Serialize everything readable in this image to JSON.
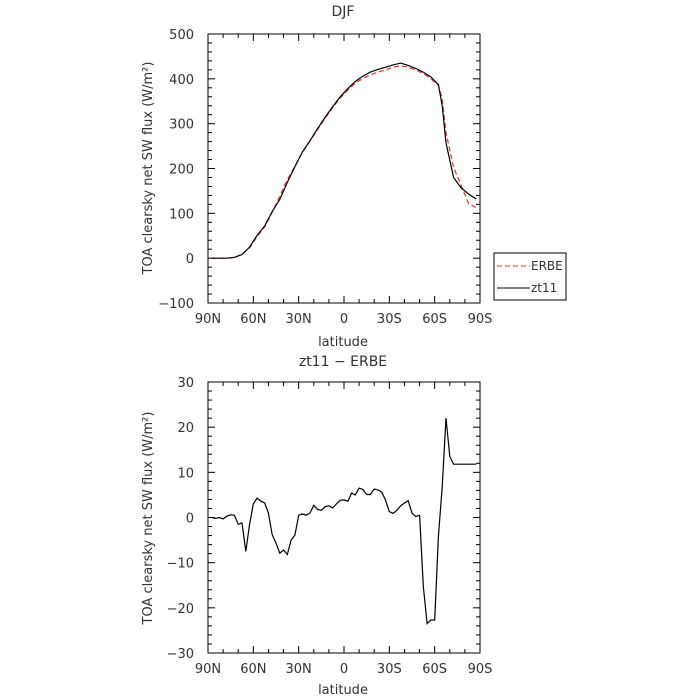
{
  "chart_data": [
    {
      "type": "line",
      "title": "DJF",
      "xlabel": "latitude",
      "ylabel": "TOA clearsky net SW flux (W/m²)",
      "xlim": [
        -90,
        90
      ],
      "ylim": [
        -100,
        500
      ],
      "x_tick_labels": [
        "90N",
        "60N",
        "30N",
        "0",
        "30S",
        "60S",
        "90S"
      ],
      "y_ticks": [
        -100,
        0,
        100,
        200,
        300,
        400,
        500
      ],
      "grid": false,
      "legend_position": "right-outside",
      "series": [
        {
          "name": "ERBE",
          "color": "#e8322a",
          "dash": "dashed",
          "x": [
            -87.5,
            -82.5,
            -77.5,
            -72.5,
            -67.5,
            -62.5,
            -57.5,
            -52.5,
            -47.5,
            -42.5,
            -37.5,
            -32.5,
            -27.5,
            -22.5,
            -17.5,
            -12.5,
            -7.5,
            -2.5,
            2.5,
            7.5,
            12.5,
            17.5,
            22.5,
            27.5,
            32.5,
            37.5,
            42.5,
            47.5,
            52.5,
            57.5,
            62.5,
            65,
            67.5,
            72.5,
            77.5,
            82.5,
            87.5
          ],
          "values": [
            0,
            0,
            0,
            1,
            9,
            23,
            48,
            70,
            102,
            138,
            175,
            205,
            236,
            261,
            287,
            312,
            336,
            357,
            375,
            390,
            401,
            409,
            415,
            420,
            426,
            429,
            426,
            420,
            412,
            400,
            385,
            355,
            280,
            202,
            163,
            121,
            113
          ]
        },
        {
          "name": "zt11",
          "color": "#000000",
          "dash": "solid",
          "x": [
            -87.5,
            -82.5,
            -77.5,
            -72.5,
            -67.5,
            -62.5,
            -57.5,
            -52.5,
            -47.5,
            -42.5,
            -37.5,
            -32.5,
            -27.5,
            -22.5,
            -17.5,
            -12.5,
            -7.5,
            -2.5,
            2.5,
            7.5,
            12.5,
            17.5,
            22.5,
            27.5,
            32.5,
            37.5,
            42.5,
            47.5,
            52.5,
            57.5,
            62.5,
            65,
            67.5,
            72.5,
            77.5,
            82.5,
            87.5
          ],
          "values": [
            0,
            0,
            0,
            2,
            8,
            25,
            51,
            72,
            104,
            131,
            169,
            204,
            237,
            262,
            289,
            314,
            338,
            360,
            378,
            394,
            406,
            415,
            421,
            426,
            431,
            435,
            430,
            423,
            415,
            404,
            387,
            340,
            257,
            180,
            157,
            143,
            132
          ]
        }
      ]
    },
    {
      "type": "line",
      "title": "zt11 − ERBE",
      "xlabel": "latitude",
      "ylabel": "TOA clearsky net SW flux (W/m²)",
      "xlim": [
        -90,
        90
      ],
      "ylim": [
        -30,
        30
      ],
      "x_tick_labels": [
        "90N",
        "60N",
        "30N",
        "0",
        "30S",
        "60S",
        "90S"
      ],
      "y_ticks": [
        -30,
        -20,
        -10,
        0,
        10,
        20,
        30
      ],
      "grid": false,
      "series": [
        {
          "color": "#000000",
          "dash": "solid",
          "x": [
            -87.5,
            -85,
            -82.5,
            -80,
            -77.5,
            -75,
            -72.5,
            -70,
            -67.5,
            -65,
            -62.5,
            -60,
            -57.5,
            -55,
            -52.5,
            -50,
            -47.5,
            -45,
            -42.5,
            -40,
            -37.5,
            -35,
            -32.5,
            -30,
            -27.5,
            -25,
            -22.5,
            -20,
            -17.5,
            -15,
            -12.5,
            -10,
            -7.5,
            -5,
            -2.5,
            0,
            2.5,
            5,
            7.5,
            10,
            12.5,
            15,
            17.5,
            20,
            22.5,
            25,
            27.5,
            30,
            32.5,
            35,
            37.5,
            40,
            42.5,
            45,
            47.5,
            50,
            52.5,
            55,
            57.5,
            60,
            62.5,
            65,
            67.5,
            70,
            72.5,
            75,
            77.5,
            80,
            82.5,
            85,
            87.5
          ],
          "values": [
            0,
            -0.2,
            0,
            -0.3,
            0.3,
            0.6,
            0.5,
            -1.5,
            -1.2,
            -7.5,
            -1.5,
            3,
            4.3,
            3.6,
            3.2,
            1,
            -3.8,
            -5.7,
            -7.9,
            -7.2,
            -8.2,
            -5,
            -3.9,
            0.5,
            0.8,
            0.5,
            1,
            2.7,
            1.8,
            1.6,
            2.4,
            2.6,
            2.1,
            3,
            3.8,
            3.9,
            3.6,
            5.4,
            5,
            6.5,
            6.2,
            5.1,
            5.1,
            6.3,
            6.1,
            5.6,
            3.8,
            1.3,
            0.9,
            1.6,
            2.6,
            3.2,
            3.7,
            1,
            0.2,
            0.5,
            -15.2,
            -23.5,
            -22.7,
            -22.7,
            -4.2,
            6.8,
            22,
            13.5,
            11.8,
            11.8,
            11.8,
            11.8,
            11.8,
            11.8,
            11.8
          ]
        }
      ]
    }
  ]
}
